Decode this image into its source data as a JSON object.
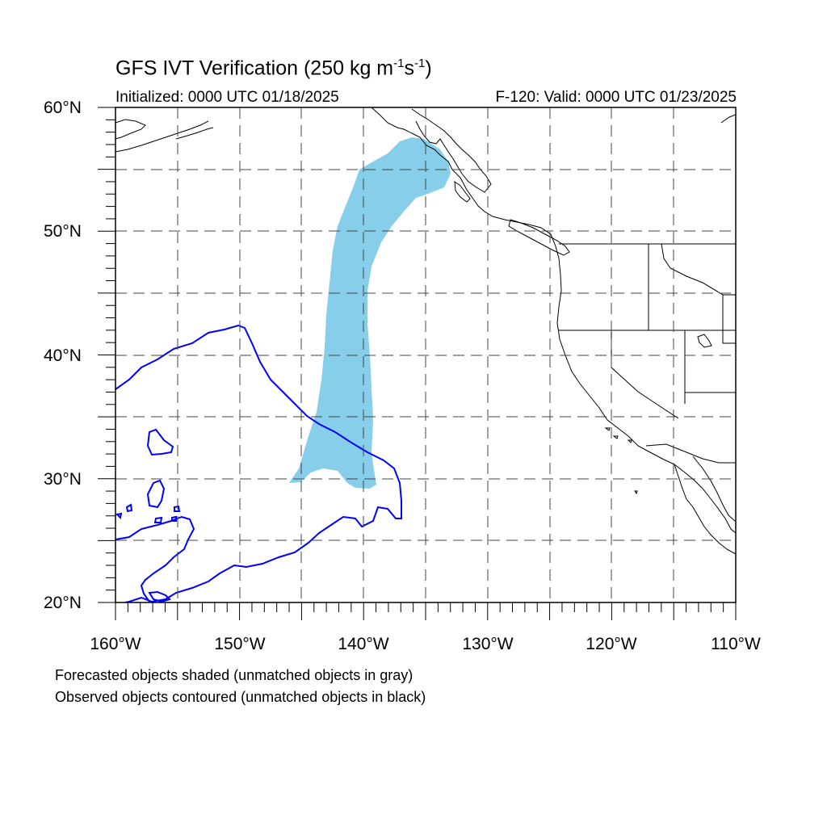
{
  "title": {
    "text": "GFS IVT Verification (250 kg m",
    "sup1": "-1",
    "mid": "s",
    "sup2": "-1",
    "close": ")"
  },
  "initialized": "Initialized: 0000 UTC 01/18/2025",
  "valid": "F-120: Valid: 0000 UTC 01/23/2025",
  "footnotes": [
    "Forecasted objects shaded (unmatched objects in gray)",
    "Observed objects contoured (unmatched objects in black)"
  ],
  "lat_labels": [
    "60°N",
    "50°N",
    "40°N",
    "30°N",
    "20°N"
  ],
  "lon_labels": [
    "160°W",
    "150°W",
    "140°W",
    "130°W",
    "120°W",
    "110°W"
  ],
  "extent": {
    "lon_min": -160,
    "lon_max": -110,
    "lat_min": 20,
    "lat_max": 60
  },
  "colors": {
    "forecast_fill": "#87ceeb",
    "observed_contour": "#0000ff",
    "coast": "#000000",
    "grid": "#444444"
  }
}
